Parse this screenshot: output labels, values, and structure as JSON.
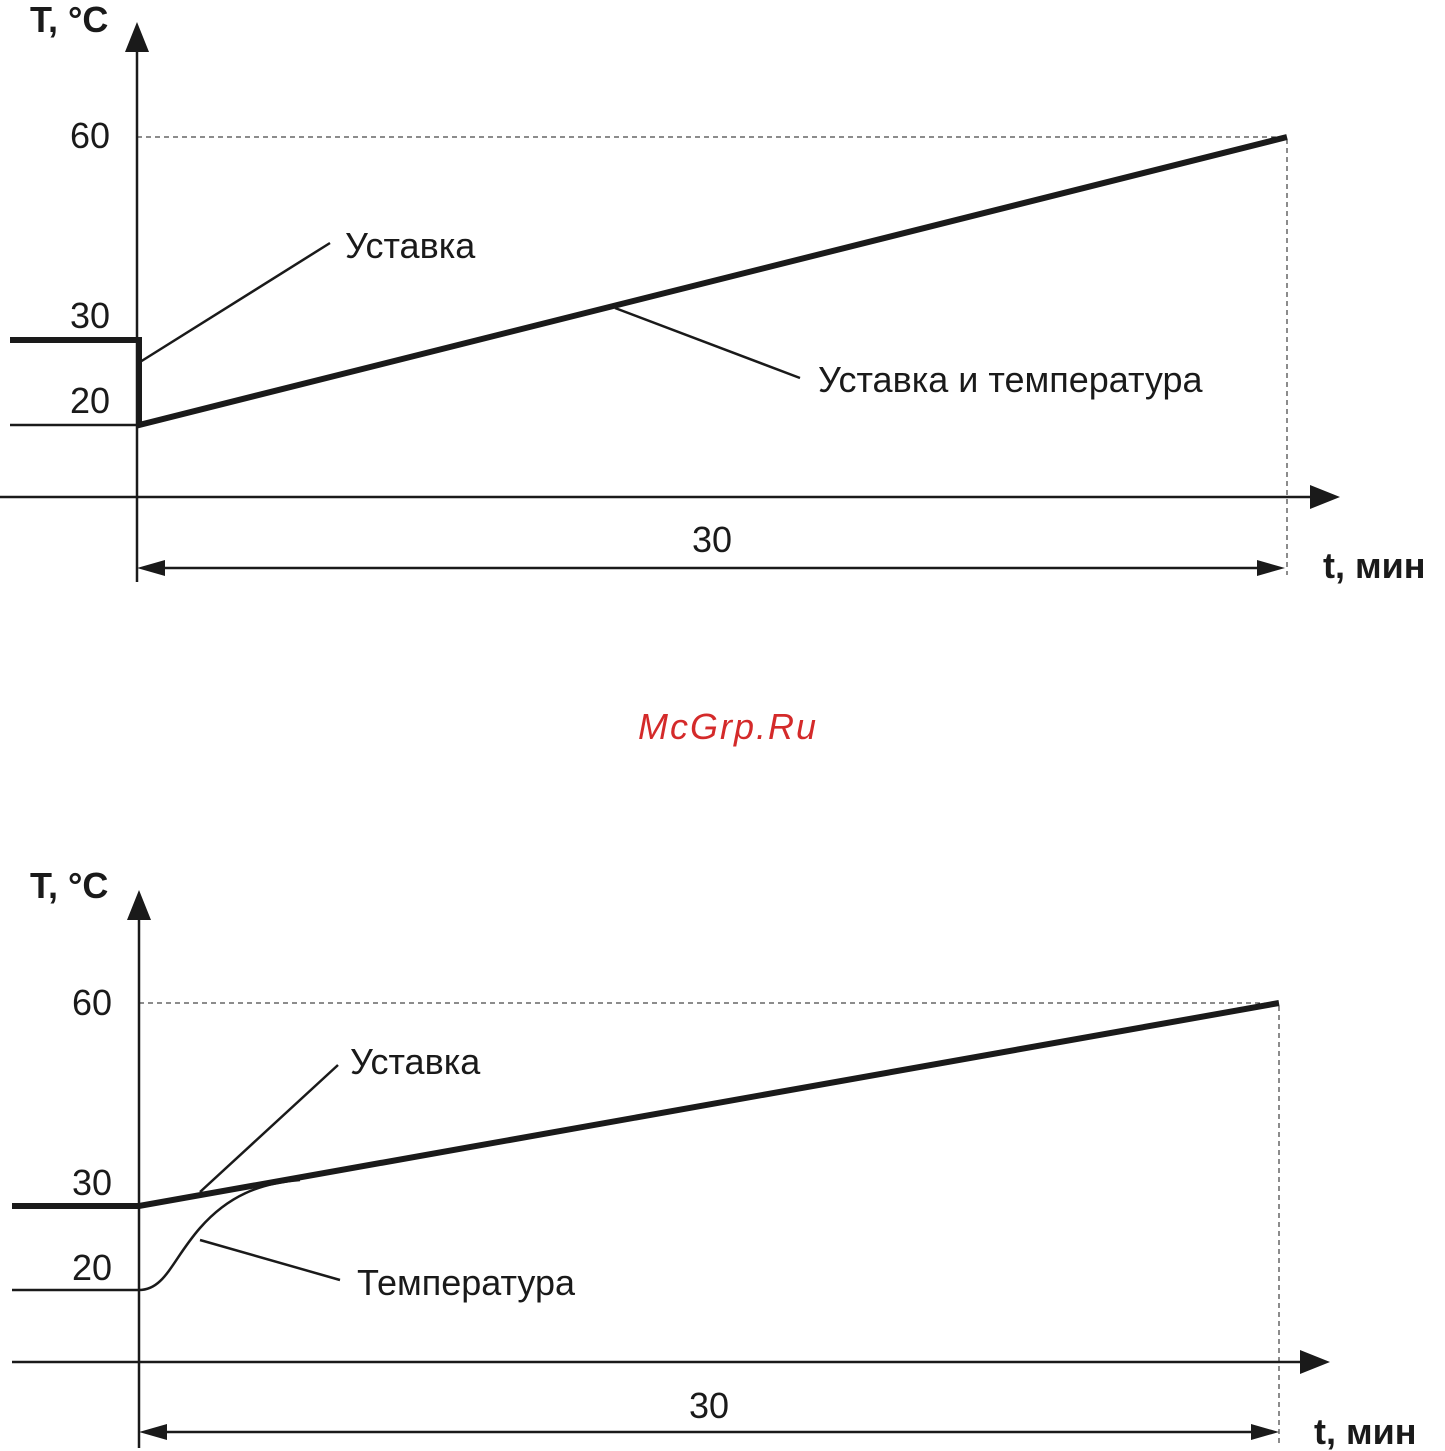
{
  "diagrams": [
    {
      "y_axis_label": "T, °C",
      "ticks": [
        "60",
        "30",
        "20"
      ],
      "labels": [
        "Уставка",
        "Уставка и температура"
      ],
      "duration": "30",
      "x_axis_label": "t, мин"
    },
    {
      "y_axis_label": "T, °C",
      "ticks": [
        "60",
        "30",
        "20"
      ],
      "labels": [
        "Уставка",
        "Температура"
      ],
      "duration": "30",
      "x_axis_label": "t, мин"
    }
  ],
  "watermark": "McGrp.Ru"
}
